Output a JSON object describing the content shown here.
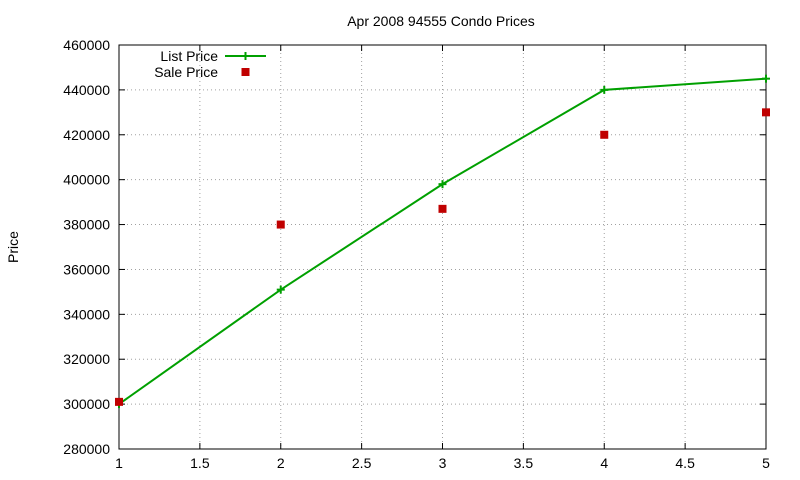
{
  "chart_data": {
    "type": "line",
    "title": "Apr 2008 94555 Condo Prices",
    "xlabel": "",
    "ylabel": "Price",
    "xlim": [
      1,
      5
    ],
    "ylim": [
      280000,
      460000
    ],
    "x_ticks": [
      1,
      1.5,
      2,
      2.5,
      3,
      3.5,
      4,
      4.5,
      5
    ],
    "y_ticks": [
      280000,
      300000,
      320000,
      340000,
      360000,
      380000,
      400000,
      420000,
      440000,
      460000
    ],
    "grid": true,
    "legend_position": "top-left",
    "series": [
      {
        "name": "List Price",
        "style": "linespoints",
        "marker": "plus",
        "color": "#00a000",
        "x": [
          1,
          2,
          3,
          4,
          5
        ],
        "y": [
          300000,
          351000,
          398000,
          440000,
          445000
        ]
      },
      {
        "name": "Sale Price",
        "style": "points",
        "marker": "square",
        "color": "#c00000",
        "x": [
          1,
          2,
          3,
          4,
          5
        ],
        "y": [
          301000,
          380000,
          387000,
          420000,
          430000
        ]
      }
    ]
  }
}
